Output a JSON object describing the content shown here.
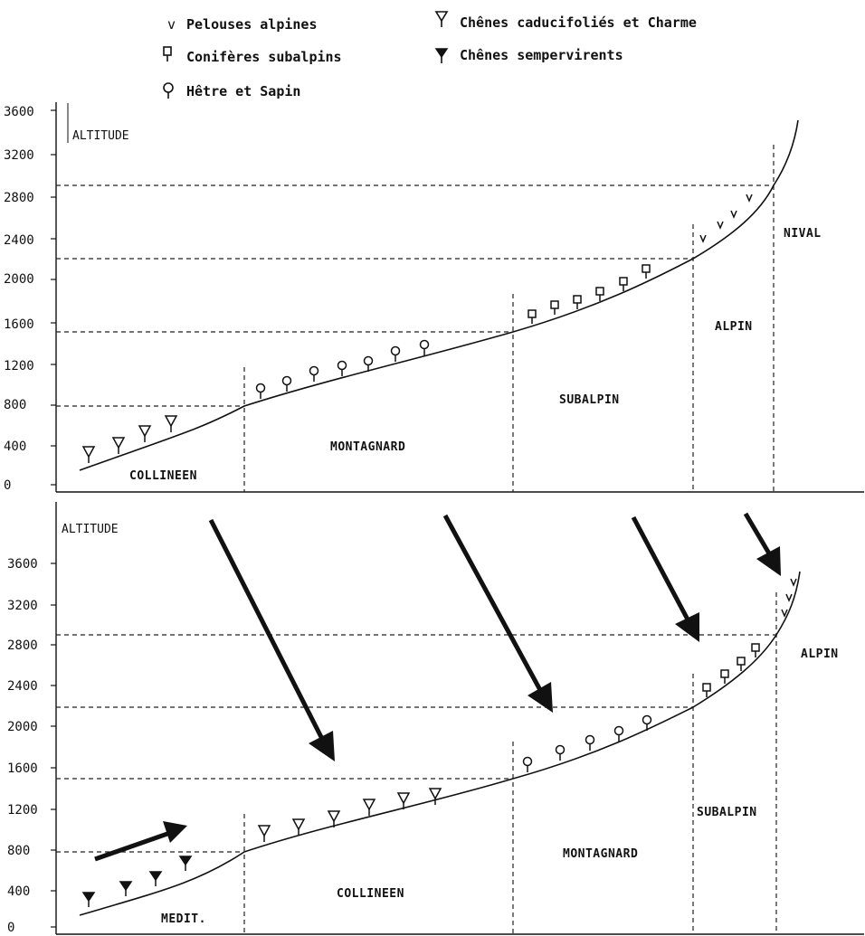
{
  "legend": [
    {
      "key": "pelouses",
      "label": "Pelouses alpines",
      "icon": "v-mark-icon"
    },
    {
      "key": "chenes_cad",
      "label": "Chênes caducifoliés et Charme",
      "icon": "open-triangle-tree-icon"
    },
    {
      "key": "coniferes",
      "label": "Conifères subalpins",
      "icon": "square-head-tree-icon"
    },
    {
      "key": "chenes_semp",
      "label": "Chênes sempervirents",
      "icon": "filled-triangle-tree-icon"
    },
    {
      "key": "hetre",
      "label": "Hêtre et Sapin",
      "icon": "round-head-tree-icon"
    }
  ],
  "top_panel": {
    "axis_title": "ALTITUDE",
    "ticks": [
      "0",
      "400",
      "800",
      "1200",
      "1600",
      "2000",
      "2400",
      "2800",
      "3200",
      "3600"
    ],
    "tick_values": [
      0,
      400,
      800,
      1200,
      1600,
      2000,
      2400,
      2800,
      3200,
      3600
    ],
    "zones": [
      "COLLINEEN",
      "MONTAGNARD",
      "SUBALPIN",
      "ALPIN",
      "NIVAL"
    ],
    "boundaries": [
      800,
      1500,
      2200,
      2900
    ]
  },
  "bottom_panel": {
    "axis_title": "ALTITUDE",
    "ticks": [
      "0",
      "400",
      "800",
      "1200",
      "1600",
      "2000",
      "2400",
      "2800",
      "3200",
      "3600"
    ],
    "tick_values": [
      0,
      400,
      800,
      1200,
      1600,
      2000,
      2400,
      2800,
      3200,
      3600
    ],
    "zones": [
      "MEDIT.",
      "COLLINEEN",
      "MONTAGNARD",
      "SUBALPIN",
      "ALPIN"
    ],
    "boundaries": [
      800,
      1500,
      2200,
      2900
    ]
  },
  "colors": {
    "ink": "#111111",
    "dash": "#222222",
    "background": "#ffffff"
  }
}
